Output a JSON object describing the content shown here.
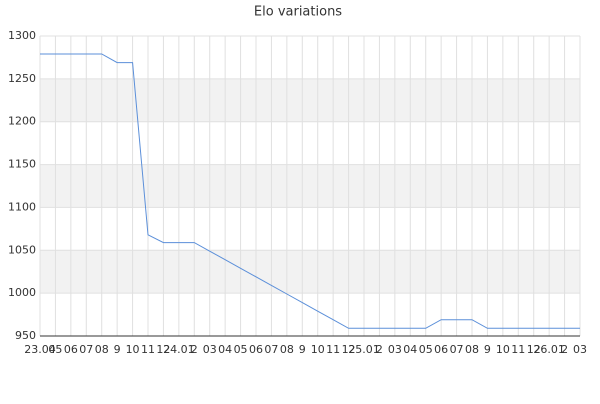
{
  "chart_data": {
    "type": "line",
    "title": "Elo variations",
    "categories": [
      "23.04",
      "05",
      "06",
      "07",
      "08",
      "9",
      "10",
      "11",
      "12",
      "24.01",
      "2",
      "03",
      "04",
      "05",
      "06",
      "07",
      "08",
      "9",
      "10",
      "11",
      "12",
      "25.01",
      "2",
      "03",
      "04",
      "05",
      "06",
      "07",
      "08",
      "9",
      "10",
      "11",
      "12",
      "26.01",
      "2",
      "03"
    ],
    "series": [
      {
        "name": "Elo",
        "color": "#5b8fd9",
        "values": [
          1279,
          1279,
          1279,
          1279,
          1279,
          1269,
          1269,
          1068,
          1059,
          1059,
          1059,
          1049,
          1039,
          1029,
          1019,
          1009,
          999,
          989,
          979,
          969,
          959,
          959,
          959,
          959,
          959,
          959,
          969,
          969,
          969,
          959,
          959,
          959,
          959,
          959,
          959,
          959
        ]
      }
    ],
    "ylim": [
      950,
      1300
    ],
    "yticks": [
      950,
      1000,
      1050,
      1100,
      1150,
      1200,
      1250,
      1300
    ],
    "grid": true,
    "bands": true
  }
}
